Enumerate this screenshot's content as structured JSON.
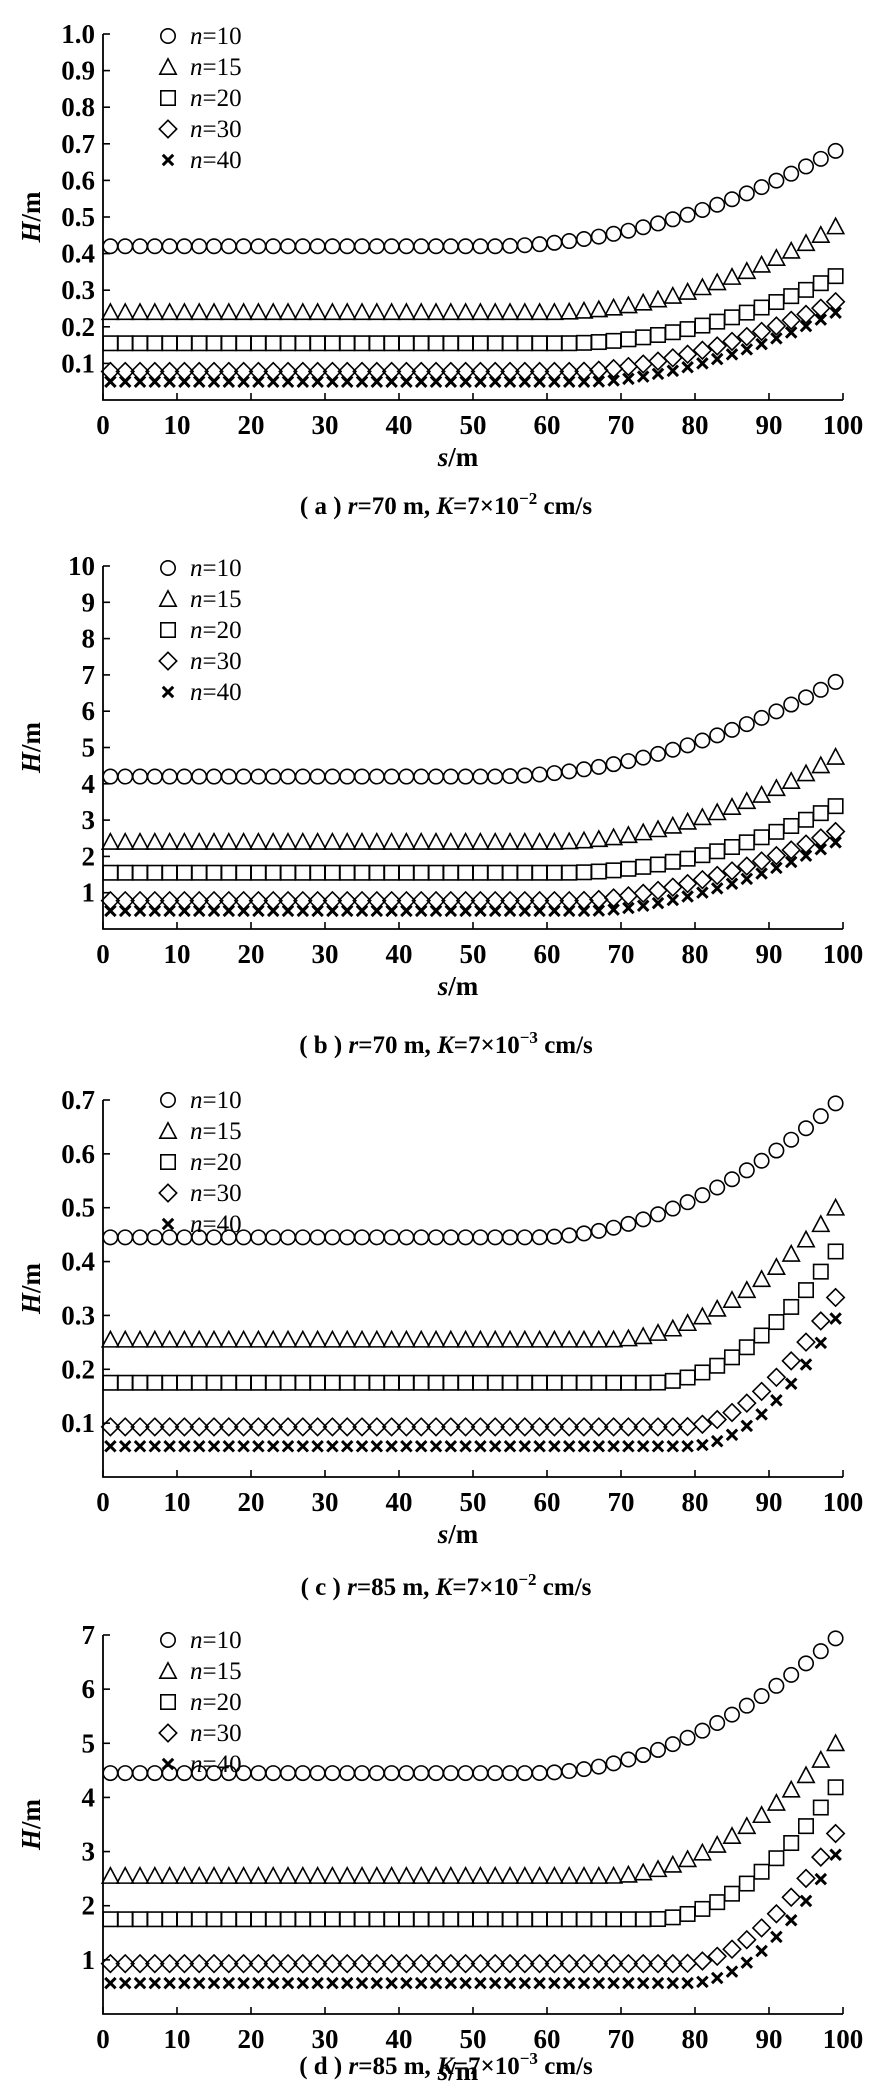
{
  "legend_entries": [
    {
      "var": "n",
      "eq": "=",
      "num": "10",
      "marker": "circle"
    },
    {
      "var": "n",
      "eq": "=",
      "num": "15",
      "marker": "triangle"
    },
    {
      "var": "n",
      "eq": "=",
      "num": "20",
      "marker": "square"
    },
    {
      "var": "n",
      "eq": "=",
      "num": "30",
      "marker": "diamond"
    },
    {
      "var": "n",
      "eq": "=",
      "num": "40",
      "marker": "cross"
    }
  ],
  "chart_data": [
    {
      "type": "scatter",
      "panel": "a",
      "caption": {
        "label": "( a )",
        "r_var": "r",
        "r_text": "=70 m,",
        "k_var": "K",
        "k_text": "=7×10",
        "k_exp": "−2",
        "k_unit": "cm/s"
      },
      "xlabel": {
        "var": "s",
        "unit": "/m"
      },
      "ylabel": {
        "var": "H",
        "unit": "/m"
      },
      "xlim": [
        0,
        100
      ],
      "xticks": [
        "0",
        "10",
        "20",
        "30",
        "40",
        "50",
        "60",
        "70",
        "80",
        "90",
        "100"
      ],
      "ylim": [
        0,
        1.0
      ],
      "yticks": [
        "0.1",
        "0.2",
        "0.3",
        "0.4",
        "0.5",
        "0.6",
        "0.7",
        "0.8",
        "0.9",
        "1.0"
      ],
      "x_start": 1,
      "x_step": 2,
      "x_end": 99,
      "series": [
        {
          "name": "n=10",
          "marker": "circle",
          "curve": {
            "base": 0.42,
            "start": 52,
            "coef": 0.000118,
            "pow": 2
          }
        },
        {
          "name": "n=15",
          "marker": "triangle",
          "curve": {
            "base": 0.24,
            "start": 60,
            "coef": 0.000154,
            "pow": 2
          }
        },
        {
          "name": "n=20",
          "marker": "square",
          "curve": {
            "base": 0.155,
            "start": 62,
            "coef": 0.000134,
            "pow": 2
          }
        },
        {
          "name": "n=30",
          "marker": "diamond",
          "curve": {
            "base": 0.078,
            "start": 64,
            "coef": 0.00054,
            "pow": 1.65
          }
        },
        {
          "name": "n=40",
          "marker": "cross",
          "curve": {
            "base": 0.05,
            "start": 66,
            "coef": 0.00053,
            "pow": 1.68
          }
        }
      ]
    },
    {
      "type": "scatter",
      "panel": "b",
      "caption": {
        "label": "( b )",
        "r_var": "r",
        "r_text": "=70 m,",
        "k_var": "K",
        "k_text": "=7×10",
        "k_exp": "−3",
        "k_unit": "cm/s"
      },
      "xlabel": {
        "var": "s",
        "unit": "/m"
      },
      "ylabel": {
        "var": "H",
        "unit": "/m"
      },
      "xlim": [
        0,
        100
      ],
      "xticks": [
        "0",
        "10",
        "20",
        "30",
        "40",
        "50",
        "60",
        "70",
        "80",
        "90",
        "100"
      ],
      "ylim": [
        0,
        10
      ],
      "yticks": [
        "1",
        "2",
        "3",
        "4",
        "5",
        "6",
        "7",
        "8",
        "9",
        "10"
      ],
      "x_start": 1,
      "x_step": 2,
      "x_end": 99,
      "series": [
        {
          "name": "n=10",
          "marker": "circle",
          "curve": {
            "base": 4.2,
            "start": 52,
            "coef": 0.00118,
            "pow": 2
          }
        },
        {
          "name": "n=15",
          "marker": "triangle",
          "curve": {
            "base": 2.4,
            "start": 60,
            "coef": 0.00154,
            "pow": 2
          }
        },
        {
          "name": "n=20",
          "marker": "square",
          "curve": {
            "base": 1.55,
            "start": 62,
            "coef": 0.00134,
            "pow": 2
          }
        },
        {
          "name": "n=30",
          "marker": "diamond",
          "curve": {
            "base": 0.78,
            "start": 64,
            "coef": 0.0054,
            "pow": 1.65
          }
        },
        {
          "name": "n=40",
          "marker": "cross",
          "curve": {
            "base": 0.5,
            "start": 66,
            "coef": 0.0053,
            "pow": 1.68
          }
        }
      ]
    },
    {
      "type": "scatter",
      "panel": "c",
      "caption": {
        "label": "( c )",
        "r_var": "r",
        "r_text": "=85 m,",
        "k_var": "K",
        "k_text": "=7×10",
        "k_exp": "−2",
        "k_unit": "cm/s"
      },
      "xlabel": {
        "var": "s",
        "unit": "/m"
      },
      "ylabel": {
        "var": "H",
        "unit": "/m"
      },
      "xlim": [
        0,
        100
      ],
      "xticks": [
        "0",
        "10",
        "20",
        "30",
        "40",
        "50",
        "60",
        "70",
        "80",
        "90",
        "100"
      ],
      "ylim": [
        0,
        0.7
      ],
      "yticks": [
        "0.1",
        "0.2",
        "0.3",
        "0.4",
        "0.5",
        "0.6",
        "0.7"
      ],
      "x_start": 1,
      "x_step": 2,
      "x_end": 99,
      "series": [
        {
          "name": "n=10",
          "marker": "circle",
          "curve": {
            "base": 0.445,
            "start": 58,
            "coef": 0.000148,
            "pow": 2
          }
        },
        {
          "name": "n=15",
          "marker": "triangle",
          "curve": {
            "base": 0.255,
            "start": 68,
            "coef": 0.000255,
            "pow": 2
          }
        },
        {
          "name": "n=20",
          "marker": "square",
          "curve": {
            "base": 0.175,
            "start": 74,
            "coef": 0.00039,
            "pow": 2
          }
        },
        {
          "name": "n=30",
          "marker": "diamond",
          "curve": {
            "base": 0.093,
            "start": 78,
            "coef": 0.000545,
            "pow": 2
          }
        },
        {
          "name": "n=40",
          "marker": "cross",
          "curve": {
            "base": 0.057,
            "start": 79,
            "coef": 0.000593,
            "pow": 2
          }
        }
      ]
    },
    {
      "type": "scatter",
      "panel": "d",
      "caption": {
        "label": "( d )",
        "r_var": "r",
        "r_text": "=85 m,",
        "k_var": "K",
        "k_text": "=7×10",
        "k_exp": "−3",
        "k_unit": "cm/s"
      },
      "xlabel": {
        "var": "s",
        "unit": "/m"
      },
      "ylabel": {
        "var": "H",
        "unit": "/m"
      },
      "xlim": [
        0,
        100
      ],
      "xticks": [
        "0",
        "10",
        "20",
        "30",
        "40",
        "50",
        "60",
        "70",
        "80",
        "90",
        "100"
      ],
      "ylim": [
        0,
        7
      ],
      "yticks": [
        "1",
        "2",
        "3",
        "4",
        "5",
        "6",
        "7"
      ],
      "x_start": 1,
      "x_step": 2,
      "x_end": 99,
      "series": [
        {
          "name": "n=10",
          "marker": "circle",
          "curve": {
            "base": 4.45,
            "start": 58,
            "coef": 0.00148,
            "pow": 2
          }
        },
        {
          "name": "n=15",
          "marker": "triangle",
          "curve": {
            "base": 2.55,
            "start": 68,
            "coef": 0.00255,
            "pow": 2
          }
        },
        {
          "name": "n=20",
          "marker": "square",
          "curve": {
            "base": 1.75,
            "start": 74,
            "coef": 0.0039,
            "pow": 2
          }
        },
        {
          "name": "n=30",
          "marker": "diamond",
          "curve": {
            "base": 0.93,
            "start": 78,
            "coef": 0.00545,
            "pow": 2
          }
        },
        {
          "name": "n=40",
          "marker": "cross",
          "curve": {
            "base": 0.57,
            "start": 79,
            "coef": 0.00593,
            "pow": 2
          }
        }
      ]
    }
  ]
}
